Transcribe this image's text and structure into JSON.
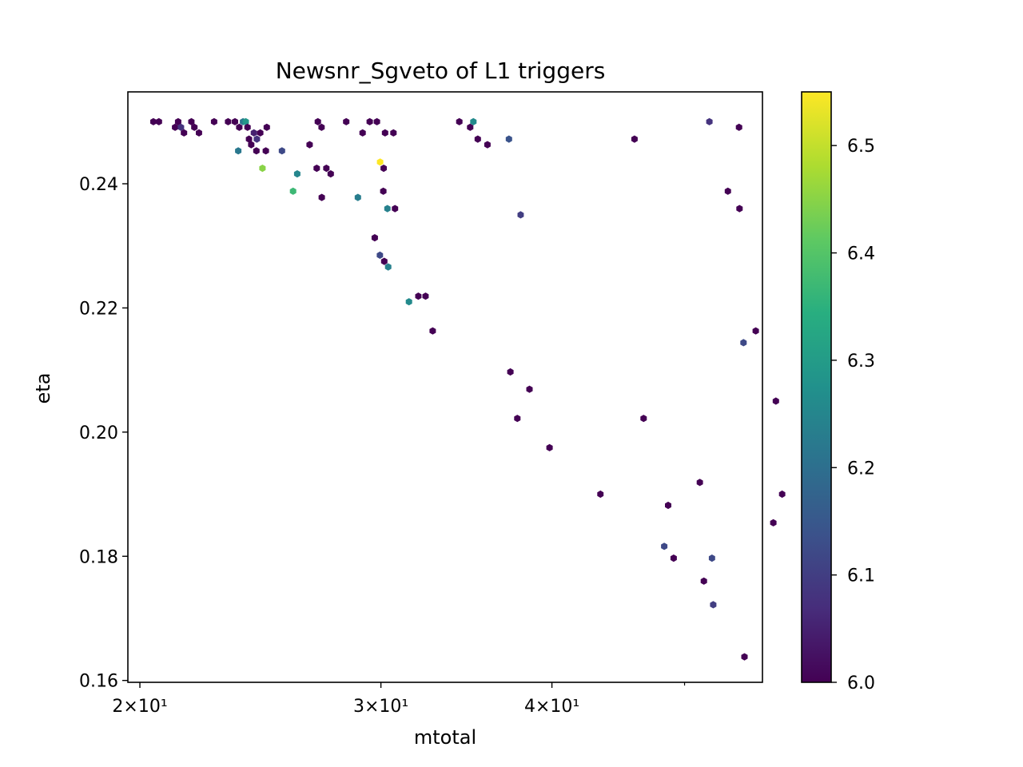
{
  "chart_data": {
    "type": "hexbin",
    "title": "Newsnr_Sgveto of L1 triggers",
    "xlabel": "mtotal",
    "ylabel": "eta",
    "xscale": "log",
    "xlim": [
      19.6,
      57.0
    ],
    "ylim": [
      0.1597,
      0.2548
    ],
    "x_ticks": [
      {
        "value": 20,
        "label": "2×10¹"
      },
      {
        "value": 30,
        "label": "3×10¹"
      },
      {
        "value": 40,
        "label": "4×10¹"
      }
    ],
    "x_minor_ticks": [
      50
    ],
    "y_ticks": [
      {
        "value": 0.16,
        "label": "0.16"
      },
      {
        "value": 0.18,
        "label": "0.18"
      },
      {
        "value": 0.2,
        "label": "0.20"
      },
      {
        "value": 0.22,
        "label": "0.22"
      },
      {
        "value": 0.24,
        "label": "0.24"
      }
    ],
    "colorbar": {
      "colormap": "viridis",
      "range": [
        6.0,
        6.55
      ],
      "ticks": [
        {
          "value": 6.0,
          "label": "6.0"
        },
        {
          "value": 6.1,
          "label": "6.1"
        },
        {
          "value": 6.2,
          "label": "6.2"
        },
        {
          "value": 6.3,
          "label": "6.3"
        },
        {
          "value": 6.4,
          "label": "6.4"
        },
        {
          "value": 6.5,
          "label": "6.5"
        }
      ]
    },
    "grid": false,
    "points": [
      [
        20.46,
        0.25,
        6.0
      ],
      [
        20.65,
        0.25,
        6.0
      ],
      [
        21.22,
        0.2491,
        6.0
      ],
      [
        21.33,
        0.25,
        6.0
      ],
      [
        21.43,
        0.2491,
        6.08
      ],
      [
        21.54,
        0.2482,
        6.0
      ],
      [
        21.81,
        0.25,
        6.0
      ],
      [
        21.92,
        0.2491,
        6.0
      ],
      [
        22.09,
        0.2482,
        6.0
      ],
      [
        22.66,
        0.25,
        6.0
      ],
      [
        23.2,
        0.25,
        6.0
      ],
      [
        23.47,
        0.25,
        6.0
      ],
      [
        23.64,
        0.2491,
        6.0
      ],
      [
        23.79,
        0.25,
        6.22
      ],
      [
        23.6,
        0.2453,
        6.22
      ],
      [
        23.9,
        0.25,
        6.29
      ],
      [
        23.97,
        0.2491,
        6.0
      ],
      [
        24.03,
        0.2472,
        6.0
      ],
      [
        24.23,
        0.2482,
        6.05
      ],
      [
        24.12,
        0.2463,
        6.0
      ],
      [
        24.35,
        0.2472,
        6.08
      ],
      [
        24.49,
        0.2482,
        6.0
      ],
      [
        24.33,
        0.2453,
        6.0
      ],
      [
        24.58,
        0.2425,
        6.45
      ],
      [
        24.72,
        0.2453,
        6.0
      ],
      [
        24.76,
        0.2491,
        6.0
      ],
      [
        25.4,
        0.2453,
        6.12
      ],
      [
        25.88,
        0.2388,
        6.37
      ],
      [
        26.06,
        0.2416,
        6.25
      ],
      [
        26.61,
        0.2463,
        6.0
      ],
      [
        26.98,
        0.25,
        6.0
      ],
      [
        26.93,
        0.2425,
        6.0
      ],
      [
        27.15,
        0.2491,
        6.0
      ],
      [
        27.16,
        0.2378,
        6.0
      ],
      [
        27.37,
        0.2425,
        6.0
      ],
      [
        27.57,
        0.2416,
        6.0
      ],
      [
        28.3,
        0.25,
        6.0
      ],
      [
        28.86,
        0.2378,
        6.23
      ],
      [
        29.09,
        0.2482,
        6.0
      ],
      [
        29.44,
        0.25,
        6.0
      ],
      [
        29.8,
        0.25,
        6.0
      ],
      [
        29.69,
        0.2313,
        6.0
      ],
      [
        29.96,
        0.2435,
        6.55
      ],
      [
        29.95,
        0.2285,
        6.12
      ],
      [
        30.14,
        0.2425,
        6.0
      ],
      [
        30.12,
        0.2388,
        6.0
      ],
      [
        30.17,
        0.2275,
        6.0
      ],
      [
        30.21,
        0.2482,
        6.0
      ],
      [
        30.33,
        0.236,
        6.24
      ],
      [
        30.37,
        0.2266,
        6.24
      ],
      [
        30.64,
        0.2482,
        6.0
      ],
      [
        30.72,
        0.236,
        6.0
      ],
      [
        31.45,
        0.221,
        6.26
      ],
      [
        31.95,
        0.2219,
        6.0
      ],
      [
        32.34,
        0.2219,
        6.0
      ],
      [
        32.73,
        0.2163,
        6.0
      ],
      [
        34.23,
        0.25,
        6.0
      ],
      [
        34.86,
        0.2491,
        6.0
      ],
      [
        35.05,
        0.25,
        6.26
      ],
      [
        35.31,
        0.2472,
        6.0
      ],
      [
        35.89,
        0.2463,
        6.0
      ],
      [
        37.21,
        0.2472,
        6.14
      ],
      [
        37.3,
        0.2097,
        6.0
      ],
      [
        37.74,
        0.2022,
        6.0
      ],
      [
        37.95,
        0.235,
        6.1
      ],
      [
        38.52,
        0.2069,
        6.0
      ],
      [
        39.84,
        0.1975,
        6.0
      ],
      [
        43.4,
        0.19,
        6.0
      ],
      [
        45.96,
        0.2472,
        6.0
      ],
      [
        46.67,
        0.2022,
        6.0
      ],
      [
        48.32,
        0.1816,
        6.12
      ],
      [
        48.64,
        0.1882,
        6.0
      ],
      [
        49.09,
        0.1797,
        6.0
      ],
      [
        51.3,
        0.1919,
        6.0
      ],
      [
        51.65,
        0.176,
        6.0
      ],
      [
        52.13,
        0.25,
        6.08
      ],
      [
        52.36,
        0.1797,
        6.12
      ],
      [
        52.47,
        0.1722,
        6.1
      ],
      [
        53.78,
        0.2388,
        6.0
      ],
      [
        54.8,
        0.2491,
        6.0
      ],
      [
        54.84,
        0.236,
        6.0
      ],
      [
        55.21,
        0.2144,
        6.12
      ],
      [
        55.3,
        0.1638,
        6.0
      ],
      [
        56.36,
        0.2163,
        6.0
      ],
      [
        58.05,
        0.1854,
        6.0
      ],
      [
        58.3,
        0.205,
        6.0
      ],
      [
        58.92,
        0.19,
        6.0
      ]
    ]
  }
}
